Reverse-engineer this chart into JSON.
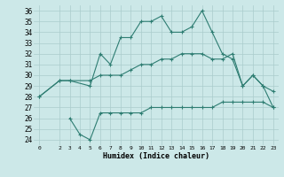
{
  "xlabel": "Humidex (Indice chaleur)",
  "background_color": "#cce8e8",
  "grid_color": "#aacccc",
  "line_color": "#2e7d72",
  "xlim": [
    -0.5,
    23.5
  ],
  "ylim": [
    23.5,
    36.5
  ],
  "yticks": [
    24,
    25,
    26,
    27,
    28,
    29,
    30,
    31,
    32,
    33,
    34,
    35,
    36
  ],
  "xticks": [
    0,
    2,
    3,
    4,
    5,
    6,
    7,
    8,
    9,
    10,
    11,
    12,
    13,
    14,
    15,
    16,
    17,
    18,
    19,
    20,
    21,
    22,
    23
  ],
  "series": [
    {
      "x": [
        0,
        2,
        3,
        5,
        6,
        7,
        8,
        9,
        10,
        11,
        12,
        13,
        14,
        15,
        16,
        17,
        18,
        19,
        20,
        21,
        22,
        23
      ],
      "y": [
        28,
        29.5,
        29.5,
        29,
        32,
        31,
        33.5,
        33.5,
        35,
        35,
        35.5,
        34,
        34,
        34.5,
        36,
        34,
        32,
        31.5,
        29,
        30,
        29,
        27
      ]
    },
    {
      "x": [
        0,
        2,
        3,
        5,
        6,
        7,
        8,
        9,
        10,
        11,
        12,
        13,
        14,
        15,
        16,
        17,
        18,
        19,
        20,
        21,
        22,
        23
      ],
      "y": [
        28,
        29.5,
        29.5,
        29.5,
        30,
        30,
        30,
        30.5,
        31,
        31,
        31.5,
        31.5,
        32,
        32,
        32,
        31.5,
        31.5,
        32,
        29,
        30,
        29,
        28.5
      ]
    },
    {
      "x": [
        3,
        4,
        5,
        6,
        7,
        8,
        9,
        10,
        11,
        12,
        13,
        14,
        15,
        16,
        17,
        18,
        19,
        20,
        21,
        22,
        23
      ],
      "y": [
        26,
        24.5,
        24,
        26.5,
        26.5,
        26.5,
        26.5,
        26.5,
        27,
        27,
        27,
        27,
        27,
        27,
        27,
        27.5,
        27.5,
        27.5,
        27.5,
        27.5,
        27
      ]
    }
  ]
}
